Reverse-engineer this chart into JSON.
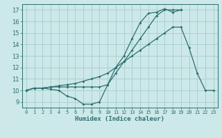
{
  "title": "",
  "xlabel": "Humidex (Indice chaleur)",
  "xlim": [
    -0.5,
    23.5
  ],
  "ylim": [
    8.5,
    17.5
  ],
  "yticks": [
    9,
    10,
    11,
    12,
    13,
    14,
    15,
    16,
    17
  ],
  "xticks": [
    0,
    1,
    2,
    3,
    4,
    5,
    6,
    7,
    8,
    9,
    10,
    11,
    12,
    13,
    14,
    15,
    16,
    17,
    18,
    19,
    20,
    21,
    22,
    23
  ],
  "bg_color": "#cce8e8",
  "grid_color": "#aad0d0",
  "line_color": "#2d6e6e",
  "line1_x": [
    0,
    1,
    2,
    3,
    4,
    5,
    6,
    7,
    8,
    9,
    10,
    11,
    12,
    13,
    14,
    15,
    16,
    17,
    18,
    19
  ],
  "line1_y": [
    10,
    10.2,
    10.2,
    10.3,
    10.3,
    10.3,
    10.3,
    10.3,
    10.3,
    10.3,
    10.5,
    11.5,
    12.5,
    13.5,
    14.5,
    15.5,
    16.5,
    17.0,
    17.0,
    17.0
  ],
  "line2_x": [
    0,
    1,
    2,
    3,
    4,
    5,
    6,
    7,
    8,
    9,
    10,
    11,
    12,
    13,
    14,
    15,
    16,
    17,
    18,
    19
  ],
  "line2_y": [
    10,
    10.2,
    10.2,
    10.1,
    10.0,
    9.5,
    9.3,
    8.8,
    8.8,
    9.0,
    10.5,
    12.0,
    13.0,
    14.5,
    15.9,
    16.7,
    16.8,
    17.1,
    16.8,
    17.0
  ],
  "line3_x": [
    0,
    1,
    2,
    3,
    4,
    5,
    6,
    7,
    8,
    9,
    10,
    11,
    12,
    13,
    14,
    15,
    16,
    17,
    18,
    19,
    20,
    21,
    22,
    23
  ],
  "line3_y": [
    10,
    10.2,
    10.2,
    10.3,
    10.4,
    10.5,
    10.6,
    10.8,
    11.0,
    11.2,
    11.5,
    12.0,
    12.5,
    13.0,
    13.5,
    14.0,
    14.5,
    15.0,
    15.5,
    15.5,
    13.7,
    11.5,
    10.0,
    10.0
  ]
}
